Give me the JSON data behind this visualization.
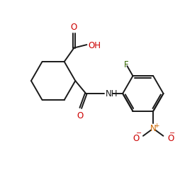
{
  "bg_color": "#ffffff",
  "line_color": "#1a1a1a",
  "atom_colors": {
    "O": "#cc0000",
    "N": "#cc6600",
    "F": "#336600",
    "C": "#1a1a1a"
  },
  "bond_width": 1.4,
  "font_size": 8.5
}
